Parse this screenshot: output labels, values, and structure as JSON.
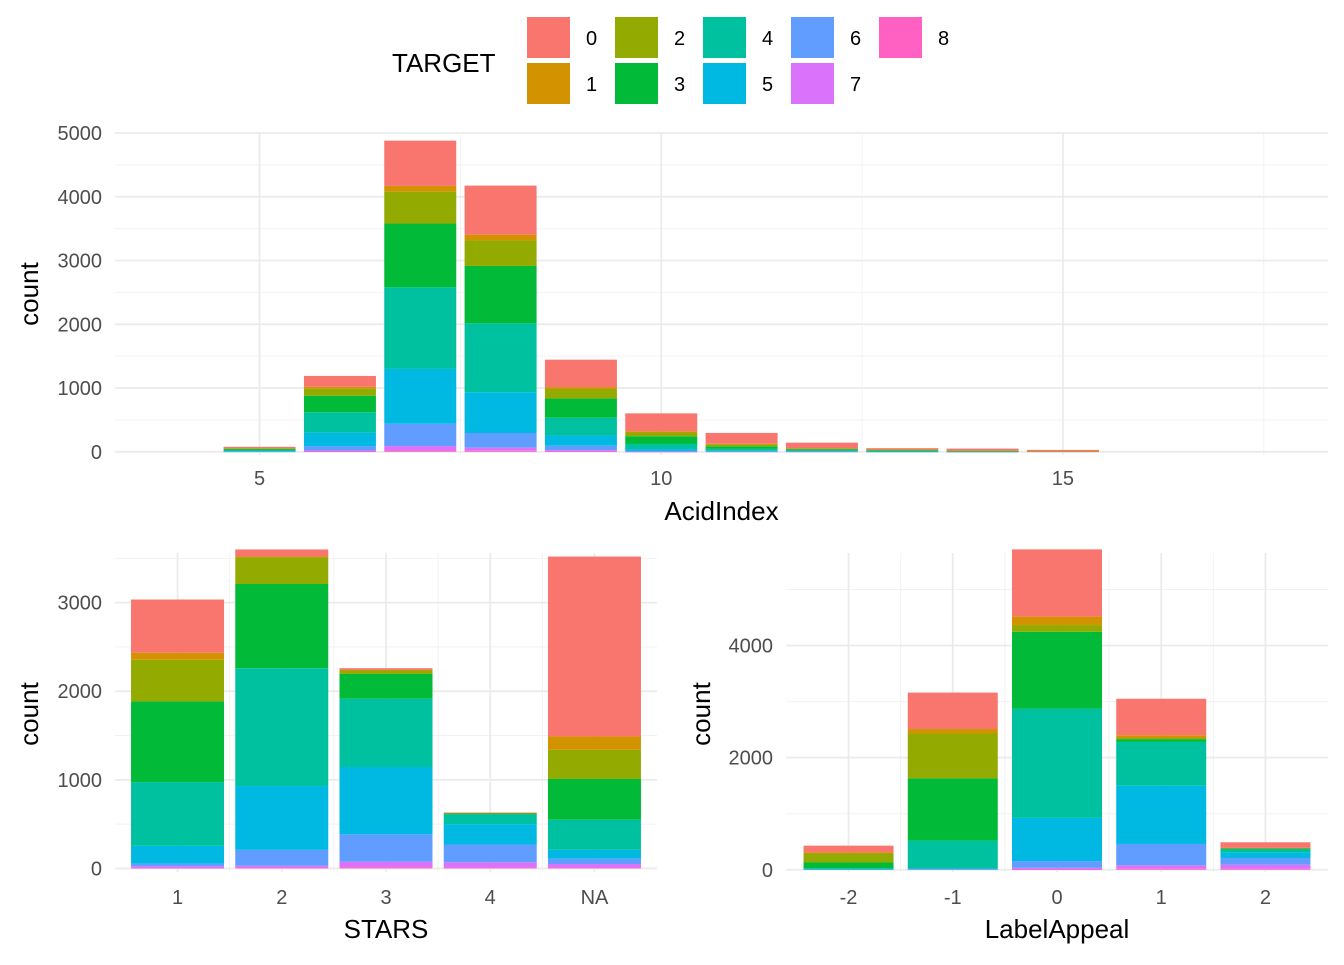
{
  "legend": {
    "title": "TARGET",
    "items": [
      {
        "label": "0",
        "color": "#F8766D"
      },
      {
        "label": "1",
        "color": "#D39200"
      },
      {
        "label": "2",
        "color": "#93AA00"
      },
      {
        "label": "3",
        "color": "#00BA38"
      },
      {
        "label": "4",
        "color": "#00C19F"
      },
      {
        "label": "5",
        "color": "#00B9E3"
      },
      {
        "label": "6",
        "color": "#619CFF"
      },
      {
        "label": "7",
        "color": "#DB72FB"
      },
      {
        "label": "8",
        "color": "#FF61C3"
      }
    ]
  },
  "chart_data": [
    {
      "type": "bar",
      "stacked": true,
      "xlabel": "AcidIndex",
      "ylabel": "count",
      "xlim": [
        3.2,
        18.3
      ],
      "ylim": [
        -50,
        5000
      ],
      "x_ticks": [
        5,
        10,
        15
      ],
      "y_ticks": [
        0,
        1000,
        2000,
        3000,
        4000,
        5000
      ],
      "x": [
        5,
        6,
        7,
        8,
        9,
        10,
        11,
        12,
        13,
        14,
        15
      ],
      "series": [
        {
          "name": "0",
          "values": [
            22,
            170,
            710,
            770,
            430,
            280,
            170,
            90,
            22,
            32,
            22
          ]
        },
        {
          "name": "1",
          "values": [
            3,
            30,
            90,
            90,
            30,
            20,
            10,
            2,
            2,
            1,
            1
          ]
        },
        {
          "name": "2",
          "values": [
            10,
            110,
            500,
            400,
            150,
            60,
            30,
            10,
            10,
            5,
            2
          ]
        },
        {
          "name": "3",
          "values": [
            15,
            260,
            1000,
            900,
            300,
            120,
            40,
            20,
            10,
            5,
            2
          ]
        },
        {
          "name": "4",
          "values": [
            20,
            320,
            1280,
            1080,
            280,
            80,
            30,
            12,
            10,
            5,
            3
          ]
        },
        {
          "name": "5",
          "values": [
            5,
            210,
            860,
            640,
            160,
            30,
            10,
            6,
            2,
            1,
            0
          ]
        },
        {
          "name": "6",
          "values": [
            3,
            70,
            350,
            230,
            70,
            10,
            5,
            3,
            1,
            1,
            0
          ]
        },
        {
          "name": "7",
          "values": [
            0,
            15,
            70,
            50,
            20,
            2,
            1,
            1,
            0,
            0,
            0
          ]
        },
        {
          "name": "8",
          "values": [
            0,
            5,
            20,
            15,
            5,
            1,
            0,
            0,
            0,
            0,
            0
          ]
        }
      ]
    },
    {
      "type": "bar",
      "stacked": true,
      "xlabel": "STARS",
      "ylabel": "count",
      "categories": [
        "1",
        "2",
        "3",
        "4",
        "NA"
      ],
      "ylim": [
        -40,
        3560
      ],
      "y_ticks": [
        0,
        1000,
        2000,
        3000
      ],
      "series": [
        {
          "name": "0",
          "values": [
            600,
            80,
            20,
            5,
            2030
          ]
        },
        {
          "name": "1",
          "values": [
            80,
            10,
            5,
            1,
            150
          ]
        },
        {
          "name": "2",
          "values": [
            470,
            300,
            40,
            5,
            330
          ]
        },
        {
          "name": "3",
          "values": [
            910,
            950,
            280,
            10,
            460
          ]
        },
        {
          "name": "4",
          "values": [
            720,
            1330,
            770,
            110,
            340
          ]
        },
        {
          "name": "5",
          "values": [
            200,
            720,
            760,
            230,
            100
          ]
        },
        {
          "name": "6",
          "values": [
            30,
            180,
            310,
            200,
            60
          ]
        },
        {
          "name": "7",
          "values": [
            20,
            20,
            60,
            60,
            40
          ]
        },
        {
          "name": "8",
          "values": [
            5,
            10,
            15,
            10,
            10
          ]
        }
      ]
    },
    {
      "type": "bar",
      "stacked": true,
      "xlabel": "LabelAppeal",
      "ylabel": "count",
      "categories": [
        "-2",
        "-1",
        "0",
        "1",
        "2"
      ],
      "ylim": [
        -40,
        5650
      ],
      "y_ticks": [
        0,
        2000,
        4000
      ],
      "series": [
        {
          "name": "0",
          "values": [
            120,
            650,
            1200,
            650,
            100
          ]
        },
        {
          "name": "1",
          "values": [
            20,
            80,
            150,
            50,
            5
          ]
        },
        {
          "name": "2",
          "values": [
            160,
            800,
            120,
            20,
            5
          ]
        },
        {
          "name": "3",
          "values": [
            100,
            1110,
            1370,
            50,
            10
          ]
        },
        {
          "name": "4",
          "values": [
            20,
            490,
            1950,
            780,
            60
          ]
        },
        {
          "name": "5",
          "values": [
            5,
            20,
            770,
            1040,
            100
          ]
        },
        {
          "name": "6",
          "values": [
            5,
            5,
            120,
            380,
            120
          ]
        },
        {
          "name": "7",
          "values": [
            0,
            5,
            30,
            60,
            70
          ]
        },
        {
          "name": "8",
          "values": [
            0,
            0,
            5,
            20,
            20
          ]
        }
      ]
    }
  ]
}
